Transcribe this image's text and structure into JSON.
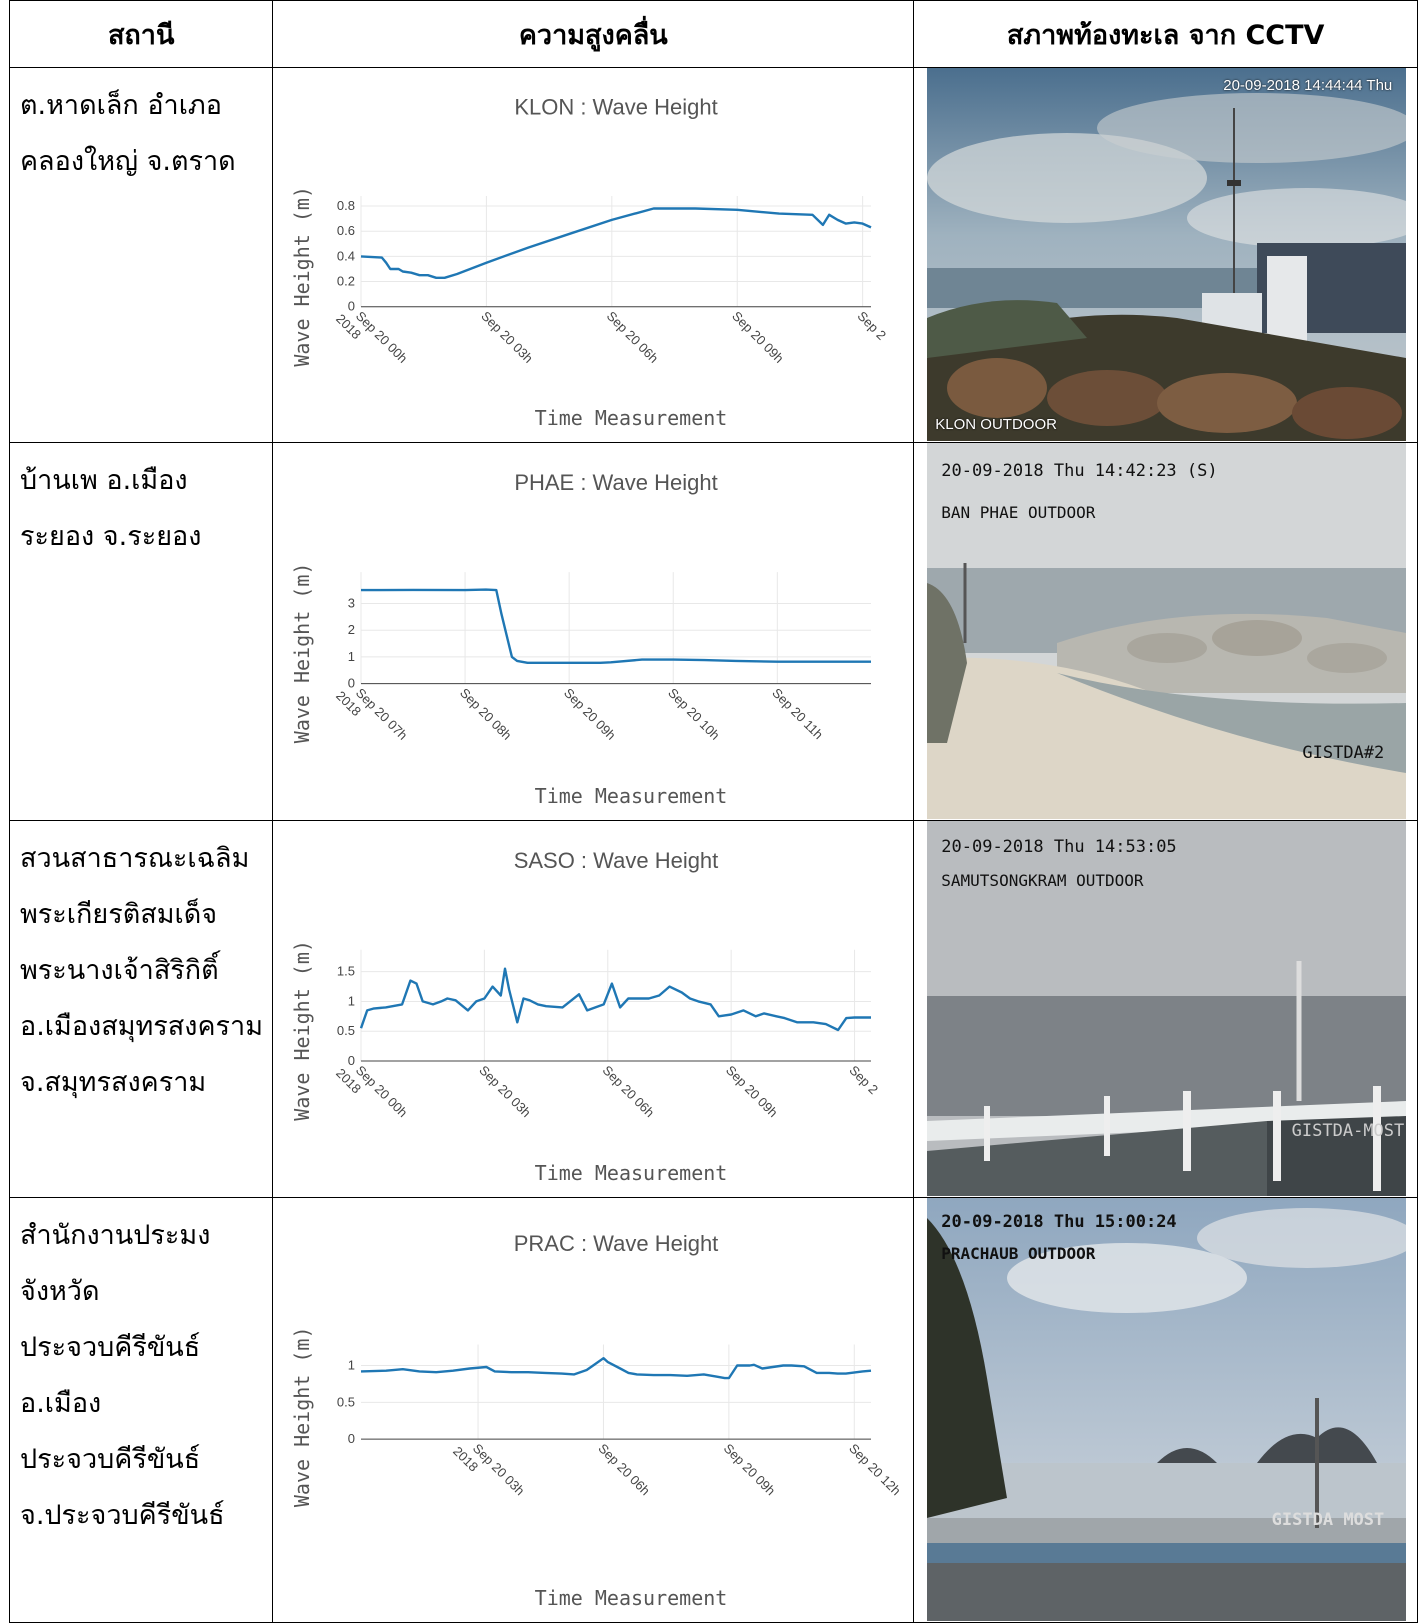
{
  "table": {
    "headers": [
      "สถานี",
      "ความสูงคลื่น",
      "สภาพท้องทะเล จาก CCTV"
    ]
  },
  "rows": [
    {
      "station": "ต.หาดเล็ก อำเภอ\nคลองใหญ่ จ.ตราด",
      "camera": {
        "timestamp": "20-09-2018 14:44:44 Thu",
        "label": "KLON OUTDOOR",
        "extra": ""
      }
    },
    {
      "station": "บ้านเพ อ.เมือง\nระยอง จ.ระยอง",
      "camera": {
        "timestamp": "20-09-2018 Thu 14:42:23 (S)",
        "label": "BAN PHAE OUTDOOR",
        "extra": "GISTDA#2"
      }
    },
    {
      "station": "สวนสาธารณะเฉลิม\nพระเกียรติสมเด็จ\nพระนางเจ้าสิริกิติ์\nอ.เมืองสมุทรสงคราม\nจ.สมุทรสงคราม",
      "camera": {
        "timestamp": "20-09-2018 Thu 14:53:05",
        "label": "SAMUTSONGKRAM OUTDOOR",
        "extra": "GISTDA-MOST"
      }
    },
    {
      "station": "สำนักงานประมง\nจังหวัด\nประจวบคีรีขันธ์\nอ.เมือง\nประจวบคีรีขันธ์\nจ.ประจวบคีรีขันธ์",
      "camera": {
        "timestamp": "20-09-2018 Thu 15:00:24",
        "label": "PRACHAUB OUTDOOR",
        "extra": "GISTDA MOST"
      }
    }
  ],
  "colors": {
    "line": "#1f77b4",
    "grid": "#e8e8e8",
    "axis": "#444444"
  },
  "chart_data": [
    {
      "type": "line",
      "title": "KLON : Wave Height",
      "xlabel": "Time Measurement",
      "ylabel": "Wave Height (m)",
      "ylim": [
        0,
        0.8
      ],
      "yticks": [
        0,
        0.2,
        0.4,
        0.6,
        0.8
      ],
      "xlim": [
        0,
        12.2
      ],
      "xticks": [
        {
          "at": 0,
          "label": [
            "Sep 20 00h",
            "2018"
          ]
        },
        {
          "at": 3,
          "label": [
            "Sep 20 03h"
          ]
        },
        {
          "at": 6,
          "label": [
            "Sep 20 06h"
          ]
        },
        {
          "at": 9,
          "label": [
            "Sep 20 09h"
          ]
        },
        {
          "at": 12,
          "label": [
            "Sep 2"
          ]
        }
      ],
      "series": [
        {
          "x": [
            0,
            0.5,
            0.6,
            0.7,
            0.9,
            1.0,
            1.2,
            1.4,
            1.6,
            1.8,
            2.0,
            2.3,
            3.0,
            4.0,
            5.0,
            6.0,
            7.0,
            8.0,
            9.0,
            10.0,
            10.8,
            11.05,
            11.2,
            11.4,
            11.6,
            11.8,
            12.0,
            12.2
          ],
          "y": [
            0.4,
            0.39,
            0.35,
            0.3,
            0.3,
            0.28,
            0.27,
            0.25,
            0.25,
            0.23,
            0.23,
            0.26,
            0.35,
            0.47,
            0.58,
            0.69,
            0.78,
            0.78,
            0.77,
            0.74,
            0.73,
            0.65,
            0.73,
            0.69,
            0.66,
            0.67,
            0.66,
            0.63
          ]
        }
      ]
    },
    {
      "type": "line",
      "title": "PHAE : Wave Height",
      "xlabel": "Time Measurement",
      "ylabel": "Wave Height (m)",
      "ylim": [
        0,
        3.8
      ],
      "yticks": [
        0,
        1,
        2,
        3
      ],
      "xlim": [
        7,
        11.9
      ],
      "xticks": [
        {
          "at": 7,
          "label": [
            "Sep 20 07h",
            "2018"
          ]
        },
        {
          "at": 8,
          "label": [
            "Sep 20 08h"
          ]
        },
        {
          "at": 9,
          "label": [
            "Sep 20 09h"
          ]
        },
        {
          "at": 10,
          "label": [
            "Sep 20 10h"
          ]
        },
        {
          "at": 11,
          "label": [
            "Sep 20 11h"
          ]
        }
      ],
      "series": [
        {
          "x": [
            7.0,
            7.5,
            8.0,
            8.2,
            8.3,
            8.35,
            8.45,
            8.5,
            8.6,
            8.8,
            9.0,
            9.3,
            9.4,
            9.7,
            10.0,
            10.3,
            10.6,
            11.0,
            11.5,
            11.9
          ],
          "y": [
            3.5,
            3.51,
            3.5,
            3.52,
            3.5,
            2.6,
            1.0,
            0.85,
            0.78,
            0.78,
            0.78,
            0.78,
            0.8,
            0.9,
            0.9,
            0.88,
            0.85,
            0.82,
            0.82,
            0.82
          ]
        }
      ]
    },
    {
      "type": "line",
      "title": "SASO : Wave Height",
      "xlabel": "Time Measurement",
      "ylabel": "Wave Height (m)",
      "ylim": [
        0,
        1.7
      ],
      "yticks": [
        0,
        0.5,
        1,
        1.5
      ],
      "xlim": [
        0,
        12.4
      ],
      "xticks": [
        {
          "at": 0,
          "label": [
            "Sep 20 00h",
            "2018"
          ]
        },
        {
          "at": 3,
          "label": [
            "Sep 20 03h"
          ]
        },
        {
          "at": 6,
          "label": [
            "Sep 20 06h"
          ]
        },
        {
          "at": 9,
          "label": [
            "Sep 20 09h"
          ]
        },
        {
          "at": 12,
          "label": [
            "Sep 2"
          ]
        }
      ],
      "series": [
        {
          "x": [
            0,
            0.15,
            0.3,
            0.6,
            1.0,
            1.2,
            1.35,
            1.5,
            1.75,
            1.95,
            2.1,
            2.3,
            2.6,
            2.8,
            3.0,
            3.2,
            3.4,
            3.5,
            3.6,
            3.8,
            3.95,
            4.1,
            4.3,
            4.5,
            4.9,
            5.3,
            5.5,
            5.7,
            5.9,
            6.1,
            6.3,
            6.5,
            6.7,
            7.0,
            7.25,
            7.5,
            7.8,
            8.0,
            8.2,
            8.5,
            8.7,
            9.0,
            9.3,
            9.6,
            9.8,
            10.1,
            10.3,
            10.6,
            11.0,
            11.3,
            11.6,
            11.8,
            12.0,
            12.4
          ],
          "y": [
            0.55,
            0.85,
            0.88,
            0.9,
            0.95,
            1.35,
            1.3,
            1.0,
            0.95,
            1.0,
            1.05,
            1.02,
            0.85,
            1.0,
            1.05,
            1.25,
            1.1,
            1.55,
            1.2,
            0.65,
            1.05,
            1.02,
            0.95,
            0.92,
            0.9,
            1.12,
            0.85,
            0.9,
            0.95,
            1.3,
            0.9,
            1.05,
            1.05,
            1.05,
            1.1,
            1.25,
            1.15,
            1.05,
            1.0,
            0.95,
            0.75,
            0.78,
            0.85,
            0.75,
            0.8,
            0.75,
            0.72,
            0.65,
            0.65,
            0.62,
            0.52,
            0.72,
            0.73,
            0.73
          ]
        }
      ]
    },
    {
      "type": "line",
      "title": "PRAC : Wave Height",
      "xlabel": "Time Measurement",
      "ylabel": "Wave Height (m)",
      "ylim": [
        0,
        1.15
      ],
      "yticks": [
        0,
        0.5,
        1
      ],
      "xlim": [
        0.2,
        12.4
      ],
      "xticks": [
        {
          "at": 3,
          "label": [
            "Sep 20 03h",
            "2018"
          ]
        },
        {
          "at": 6,
          "label": [
            "Sep 20 06h"
          ]
        },
        {
          "at": 9,
          "label": [
            "Sep 20 09h"
          ]
        },
        {
          "at": 12,
          "label": [
            "Sep 20 12h"
          ]
        }
      ],
      "series": [
        {
          "x": [
            0.2,
            0.8,
            1.2,
            1.6,
            2.0,
            2.4,
            2.8,
            3.2,
            3.4,
            3.8,
            4.2,
            4.6,
            5.0,
            5.3,
            5.6,
            5.8,
            6.0,
            6.1,
            6.4,
            6.6,
            6.8,
            7.2,
            7.6,
            8.0,
            8.4,
            8.7,
            8.9,
            9.0,
            9.2,
            9.5,
            9.6,
            9.8,
            10.3,
            10.5,
            10.8,
            11.1,
            11.4,
            11.6,
            11.8,
            12.2,
            12.4
          ],
          "y": [
            0.92,
            0.93,
            0.95,
            0.92,
            0.91,
            0.93,
            0.96,
            0.98,
            0.92,
            0.91,
            0.91,
            0.9,
            0.89,
            0.88,
            0.94,
            1.02,
            1.1,
            1.05,
            0.96,
            0.9,
            0.88,
            0.87,
            0.87,
            0.86,
            0.88,
            0.85,
            0.83,
            0.83,
            1.0,
            1.0,
            1.01,
            0.96,
            1.0,
            1.0,
            0.99,
            0.9,
            0.9,
            0.89,
            0.89,
            0.92,
            0.93
          ]
        }
      ]
    }
  ]
}
